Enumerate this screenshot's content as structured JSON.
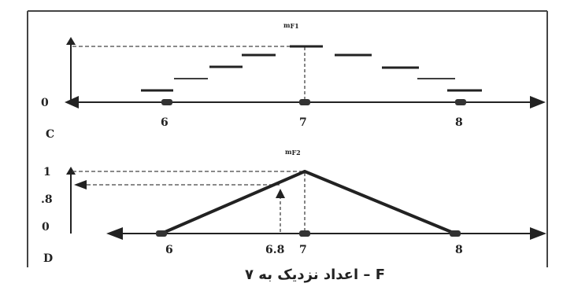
{
  "panel_c": {
    "label": "C",
    "membership_label": "m",
    "membership_sub": "F1",
    "y_zero": "0",
    "x_ticks": [
      "6",
      "7",
      "8"
    ]
  },
  "panel_d": {
    "label": "D",
    "membership_label": "m",
    "membership_sub": "F2",
    "y_ticks": [
      "1",
      ".8",
      "0"
    ],
    "x_ticks": [
      "6",
      "6.8",
      "7",
      "8"
    ]
  },
  "caption": "F – اعداد نزدیک به ۷",
  "colors": {
    "ink": "#222222",
    "frame": "#333333"
  }
}
